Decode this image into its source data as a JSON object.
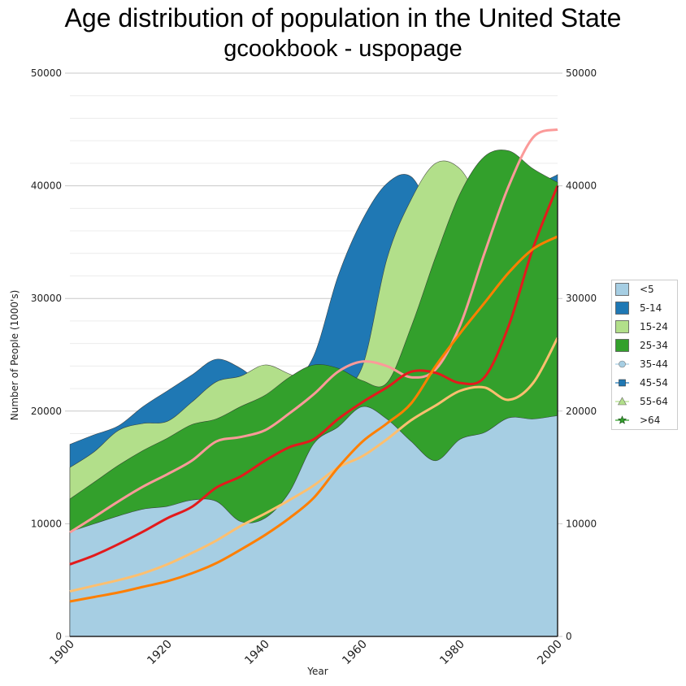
{
  "chart_data": {
    "type": "area",
    "title": "Age distribution of population in the United State",
    "subtitle": "gcookbook - uspopage",
    "xlabel": "Year",
    "ylabel": "Number of People (1000's)",
    "xlim": [
      1900,
      2000
    ],
    "ylim": [
      0,
      50000
    ],
    "x_ticks": [
      "1900",
      "1920",
      "1940",
      "1960",
      "1980",
      "2000"
    ],
    "y_ticks": [
      "0",
      "10000",
      "20000",
      "30000",
      "40000",
      "50000"
    ],
    "y_minor_step": 2000,
    "grid": true,
    "legend_position": "right",
    "x": [
      1900,
      1905,
      1910,
      1915,
      1920,
      1925,
      1930,
      1935,
      1940,
      1945,
      1950,
      1955,
      1960,
      1965,
      1970,
      1975,
      1980,
      1985,
      1990,
      1995,
      2000
    ],
    "series": [
      {
        "name": "5-14",
        "kind": "area",
        "color": "#1f78b4",
        "legend_marker": "square",
        "legend_color": "#1f78b4",
        "values": [
          17050,
          17900,
          18700,
          20400,
          21800,
          23200,
          24600,
          23800,
          22300,
          22400,
          24900,
          32000,
          37000,
          40200,
          40800,
          37000,
          34900,
          33600,
          35100,
          39500,
          41000
        ]
      },
      {
        "name": "15-24",
        "kind": "area",
        "color": "#b2df8a",
        "legend_marker": "square",
        "legend_color": "#b2df8a",
        "values": [
          15000,
          16400,
          18300,
          18900,
          19100,
          20800,
          22600,
          23100,
          24100,
          23300,
          22400,
          22000,
          24000,
          33500,
          38800,
          42000,
          41500,
          38000,
          36000,
          36500,
          39800
        ]
      },
      {
        "name": "25-34",
        "kind": "area",
        "color": "#33a02c",
        "legend_marker": "square",
        "legend_color": "#33a02c",
        "values": [
          12200,
          13700,
          15200,
          16500,
          17600,
          18800,
          19300,
          20400,
          21400,
          23000,
          24100,
          23800,
          22700,
          22500,
          27500,
          33700,
          39300,
          42600,
          43100,
          41500,
          40300
        ]
      },
      {
        "name": "<5",
        "kind": "area",
        "color": "#a6cee3",
        "legend_marker": "square",
        "legend_color": "#a6cee3",
        "values": [
          9300,
          10000,
          10700,
          11300,
          11550,
          12100,
          12000,
          10200,
          10500,
          12800,
          17100,
          18600,
          20400,
          19300,
          17300,
          15600,
          17500,
          18100,
          19400,
          19300,
          19600
        ]
      },
      {
        "name": "35-44",
        "kind": "line",
        "color": "#fb9a99",
        "legend_marker": "circle",
        "legend_color": "#a6cee3",
        "values": [
          9240,
          10600,
          12000,
          13300,
          14400,
          15600,
          17300,
          17700,
          18300,
          19800,
          21500,
          23500,
          24400,
          24000,
          23000,
          23700,
          27600,
          34000,
          40000,
          44300,
          45000
        ]
      },
      {
        "name": "45-54",
        "kind": "line",
        "color": "#e31a1c",
        "legend_marker": "square",
        "legend_color": "#1f78b4",
        "values": [
          6400,
          7200,
          8200,
          9300,
          10500,
          11500,
          13200,
          14200,
          15600,
          16800,
          17500,
          19300,
          20800,
          22100,
          23500,
          23400,
          22500,
          23000,
          27600,
          34500,
          40000
        ]
      },
      {
        "name": "55-64",
        "kind": "line",
        "color": "#fdbf6f",
        "legend_marker": "triangle",
        "legend_color": "#b2df8a",
        "values": [
          4000,
          4500,
          5000,
          5600,
          6400,
          7400,
          8500,
          9800,
          10900,
          12100,
          13400,
          15000,
          16000,
          17500,
          19200,
          20500,
          21800,
          22100,
          21000,
          22500,
          26500
        ]
      },
      {
        "name": ">64",
        "kind": "line",
        "color": "#ff7f00",
        "legend_marker": "star",
        "legend_color": "#33a02c",
        "values": [
          3100,
          3500,
          3900,
          4400,
          4900,
          5600,
          6500,
          7700,
          9000,
          10500,
          12300,
          15000,
          17300,
          18900,
          20700,
          24000,
          26900,
          29600,
          32300,
          34400,
          35500
        ]
      }
    ]
  }
}
